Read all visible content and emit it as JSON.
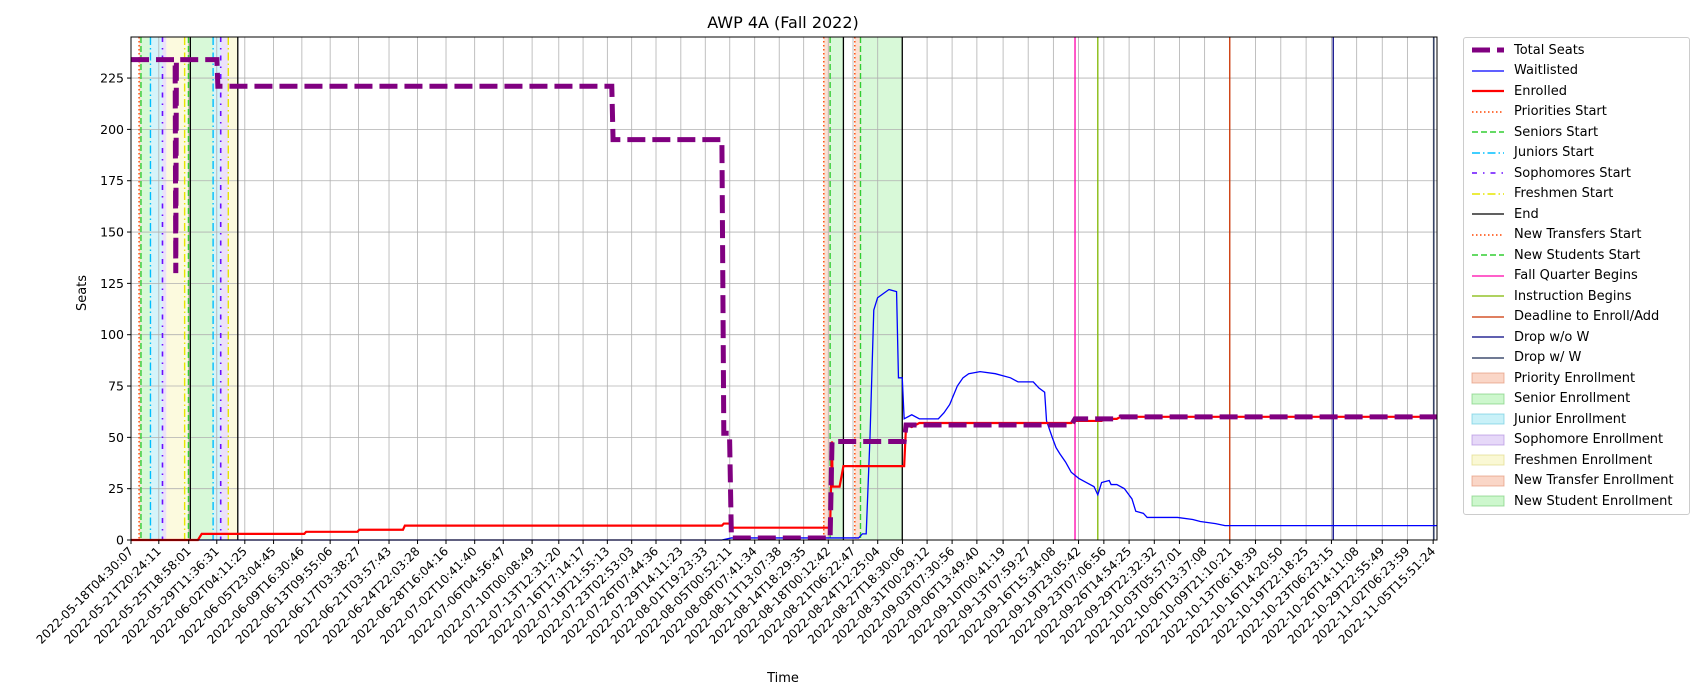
{
  "chart_data": {
    "type": "line",
    "title": "AWP 4A (Fall 2022)",
    "xlabel": "Time",
    "ylabel": "Seats",
    "ylim": [
      0,
      245
    ],
    "xlim": [
      "2022-05-18T04:30:07",
      "2022-11-06T04:00:00"
    ],
    "grid": true,
    "legend_position": "outside-right",
    "yticks": [
      0,
      25,
      50,
      75,
      100,
      125,
      150,
      175,
      200,
      225
    ],
    "xticks": [
      "2022-05-18T04:30:07",
      "2022-05-21T20:24:11",
      "2022-05-25T18:58:01",
      "2022-05-29T11:36:31",
      "2022-06-02T04:11:25",
      "2022-06-05T23:04:45",
      "2022-06-09T16:30:46",
      "2022-06-13T09:55:06",
      "2022-06-17T03:38:27",
      "2022-06-21T03:57:43",
      "2022-06-24T22:03:28",
      "2022-06-28T16:04:16",
      "2022-07-02T10:41:40",
      "2022-07-06T04:56:47",
      "2022-07-10T00:08:49",
      "2022-07-13T12:31:20",
      "2022-07-16T17:14:17",
      "2022-07-19T21:55:13",
      "2022-07-23T02:53:03",
      "2022-07-26T07:44:36",
      "2022-07-29T14:11:23",
      "2022-08-01T19:23:33",
      "2022-08-05T00:52:11",
      "2022-08-08T07:41:34",
      "2022-08-11T13:07:38",
      "2022-08-14T18:29:35",
      "2022-08-18T00:12:42",
      "2022-08-21T06:22:47",
      "2022-08-24T12:25:04",
      "2022-08-27T18:30:06",
      "2022-08-31T00:29:12",
      "2022-09-03T07:30:56",
      "2022-09-06T13:49:40",
      "2022-09-10T00:41:19",
      "2022-09-13T07:59:27",
      "2022-09-16T15:34:08",
      "2022-09-19T23:05:42",
      "2022-09-23T07:06:56",
      "2022-09-26T14:54:25",
      "2022-09-29T22:32:32",
      "2022-10-03T05:57:01",
      "2022-10-06T13:37:08",
      "2022-10-09T21:10:21",
      "2022-10-13T06:18:39",
      "2022-10-16T14:20:50",
      "2022-10-19T22:18:25",
      "2022-10-23T06:23:15",
      "2022-10-26T14:11:08",
      "2022-10-29T22:55:49",
      "2022-11-02T06:23:59",
      "2022-11-05T15:51:24"
    ],
    "series": [
      {
        "name": "Total Seats",
        "color": "#800080",
        "style": "dashed-thick",
        "points": [
          [
            "2022-05-18T04:30:07",
            234
          ],
          [
            "2022-05-23T12:00:00",
            234
          ],
          [
            "2022-05-24T00:00:00",
            234
          ],
          [
            "2022-05-24T02:00:00",
            130
          ],
          [
            "2022-05-24T04:00:00",
            234
          ],
          [
            "2022-05-29T12:00:00",
            234
          ],
          [
            "2022-05-29T15:00:00",
            221
          ],
          [
            "2022-07-20T12:00:00",
            221
          ],
          [
            "2022-07-20T16:00:00",
            195
          ],
          [
            "2022-08-04T00:00:00",
            195
          ],
          [
            "2022-08-04T06:00:00",
            52
          ],
          [
            "2022-08-05T00:00:00",
            52
          ],
          [
            "2022-08-05T06:00:00",
            1
          ],
          [
            "2022-08-18T06:00:00",
            1
          ],
          [
            "2022-08-18T12:00:00",
            48
          ],
          [
            "2022-08-28T00:00:00",
            48
          ],
          [
            "2022-08-28T06:00:00",
            56
          ],
          [
            "2022-09-19T00:00:00",
            56
          ],
          [
            "2022-09-19T12:00:00",
            59
          ],
          [
            "2022-09-25T00:00:00",
            59
          ],
          [
            "2022-09-25T12:00:00",
            60
          ],
          [
            "2022-11-06T04:00:00",
            60
          ]
        ]
      },
      {
        "name": "Waitlisted",
        "color": "#0000ff",
        "style": "solid",
        "points": [
          [
            "2022-05-18T04:30:07",
            0
          ],
          [
            "2022-08-04T00:00:00",
            0
          ],
          [
            "2022-08-05T06:00:00",
            1
          ],
          [
            "2022-08-22T00:00:00",
            1
          ],
          [
            "2022-08-22T12:00:00",
            3
          ],
          [
            "2022-08-23T00:00:00",
            3
          ],
          [
            "2022-08-23T12:00:00",
            50
          ],
          [
            "2022-08-24T00:00:00",
            112
          ],
          [
            "2022-08-24T12:00:00",
            118
          ],
          [
            "2022-08-25T06:00:00",
            120
          ],
          [
            "2022-08-26T00:00:00",
            122
          ],
          [
            "2022-08-27T00:00:00",
            121
          ],
          [
            "2022-08-27T06:00:00",
            79
          ],
          [
            "2022-08-27T18:00:00",
            79
          ],
          [
            "2022-08-28T00:00:00",
            59
          ],
          [
            "2022-08-29T00:00:00",
            61
          ],
          [
            "2022-08-30T00:00:00",
            59
          ],
          [
            "2022-09-01T12:00:00",
            59
          ],
          [
            "2022-09-02T06:00:00",
            62
          ],
          [
            "2022-09-03T00:00:00",
            66
          ],
          [
            "2022-09-04T00:00:00",
            75
          ],
          [
            "2022-09-04T18:00:00",
            79
          ],
          [
            "2022-09-05T12:00:00",
            81
          ],
          [
            "2022-09-07T00:00:00",
            82
          ],
          [
            "2022-09-09T00:00:00",
            81
          ],
          [
            "2022-09-11T00:00:00",
            79
          ],
          [
            "2022-09-12T00:00:00",
            77
          ],
          [
            "2022-09-14T00:00:00",
            77
          ],
          [
            "2022-09-14T18:00:00",
            74
          ],
          [
            "2022-09-15T12:00:00",
            72
          ],
          [
            "2022-09-15T18:00:00",
            58
          ],
          [
            "2022-09-16T12:00:00",
            50
          ],
          [
            "2022-09-17T00:00:00",
            45
          ],
          [
            "2022-09-17T12:00:00",
            42
          ],
          [
            "2022-09-18T06:00:00",
            38
          ],
          [
            "2022-09-19T00:00:00",
            33
          ],
          [
            "2022-09-20T00:00:00",
            30
          ],
          [
            "2022-09-21T00:00:00",
            28
          ],
          [
            "2022-09-22T00:00:00",
            26
          ],
          [
            "2022-09-22T12:00:00",
            22
          ],
          [
            "2022-09-23T00:00:00",
            28
          ],
          [
            "2022-09-24T00:00:00",
            29
          ],
          [
            "2022-09-24T06:00:00",
            27
          ],
          [
            "2022-09-25T00:00:00",
            27
          ],
          [
            "2022-09-26T00:00:00",
            25
          ],
          [
            "2022-09-27T00:00:00",
            20
          ],
          [
            "2022-09-27T12:00:00",
            14
          ],
          [
            "2022-09-28T12:00:00",
            13
          ],
          [
            "2022-09-29T00:00:00",
            11
          ],
          [
            "2022-10-03T00:00:00",
            11
          ],
          [
            "2022-10-05T00:00:00",
            10
          ],
          [
            "2022-10-06T00:00:00",
            9
          ],
          [
            "2022-10-08T00:00:00",
            8
          ],
          [
            "2022-10-09T06:00:00",
            7
          ],
          [
            "2022-11-06T04:00:00",
            7
          ]
        ]
      },
      {
        "name": "Enrolled",
        "color": "#ff0000",
        "style": "solid-thick",
        "points": [
          [
            "2022-05-18T04:30:07",
            0
          ],
          [
            "2022-05-27T00:00:00",
            0
          ],
          [
            "2022-05-27T12:00:00",
            3
          ],
          [
            "2022-06-10T00:00:00",
            3
          ],
          [
            "2022-06-10T06:00:00",
            4
          ],
          [
            "2022-06-17T00:00:00",
            4
          ],
          [
            "2022-06-17T06:00:00",
            5
          ],
          [
            "2022-06-23T00:00:00",
            5
          ],
          [
            "2022-06-23T06:00:00",
            7
          ],
          [
            "2022-08-04T00:00:00",
            7
          ],
          [
            "2022-08-04T06:00:00",
            8
          ],
          [
            "2022-08-05T00:00:00",
            8
          ],
          [
            "2022-08-05T06:00:00",
            6
          ],
          [
            "2022-08-18T06:00:00",
            6
          ],
          [
            "2022-08-18T12:00:00",
            48
          ],
          [
            "2022-08-18T14:00:00",
            26
          ],
          [
            "2022-08-19T12:00:00",
            26
          ],
          [
            "2022-08-20T00:00:00",
            36
          ],
          [
            "2022-08-28T00:00:00",
            36
          ],
          [
            "2022-08-28T06:00:00",
            56
          ],
          [
            "2022-08-29T00:00:00",
            55
          ],
          [
            "2022-08-30T00:00:00",
            57
          ],
          [
            "2022-09-19T00:00:00",
            57
          ],
          [
            "2022-09-19T12:00:00",
            58
          ],
          [
            "2022-09-23T00:00:00",
            58
          ],
          [
            "2022-09-23T12:00:00",
            59
          ],
          [
            "2022-09-25T00:00:00",
            59
          ],
          [
            "2022-09-25T12:00:00",
            60
          ],
          [
            "2022-11-06T04:00:00",
            60
          ]
        ]
      }
    ],
    "event_lines": [
      {
        "name": "Priorities Start",
        "color": "#ff4500",
        "style": "dotted",
        "x": [
          "2022-05-19T06:00:00",
          "2022-08-17T10:00:00"
        ]
      },
      {
        "name": "Seniors Start",
        "color": "#32cd32",
        "style": "dashed",
        "x": [
          "2022-05-19T12:00:00",
          "2022-05-25T18:00:00"
        ]
      },
      {
        "name": "Juniors Start",
        "color": "#00bfff",
        "style": "dashdot",
        "x": [
          "2022-05-20T18:00:00",
          "2022-05-29T00:00:00"
        ]
      },
      {
        "name": "Sophomores Start",
        "color": "#6a0dff",
        "style": "dashdot-dense",
        "x": [
          "2022-05-22T08:00:00",
          "2022-05-30T00:00:00"
        ]
      },
      {
        "name": "Freshmen Start",
        "color": "#e6e600",
        "style": "dashdot",
        "x": [
          "2022-05-25T06:00:00",
          "2022-05-31T00:00:00"
        ]
      },
      {
        "name": "End",
        "color": "#000000",
        "style": "solid",
        "x": [
          "2022-05-26T00:00:00",
          "2022-06-01T06:00:00",
          "2022-08-20T00:00:00",
          "2022-08-27T18:00:00"
        ]
      },
      {
        "name": "New Transfers Start",
        "color": "#ff4500",
        "style": "dotted",
        "x": [
          "2022-08-21T12:00:00"
        ]
      },
      {
        "name": "New Students Start",
        "color": "#32cd32",
        "style": "dashed",
        "x": [
          "2022-08-18T06:00:00",
          "2022-08-22T06:00:00"
        ]
      },
      {
        "name": "Fall Quarter Begins",
        "color": "#ff00aa",
        "style": "solid",
        "x": [
          "2022-09-19T12:00:00"
        ]
      },
      {
        "name": "Instruction Begins",
        "color": "#7fb800",
        "style": "solid",
        "x": [
          "2022-09-22T12:00:00"
        ]
      },
      {
        "name": "Deadline to Enroll/Add",
        "color": "#cc3300",
        "style": "solid",
        "x": [
          "2022-10-09T21:00:00"
        ]
      },
      {
        "name": "Drop w/o W",
        "color": "#000080",
        "style": "solid",
        "x": [
          "2022-10-23T12:00:00"
        ]
      },
      {
        "name": "Drop w/ W",
        "color": "#1a2a55",
        "style": "solid",
        "x": [
          "2022-11-05T18:00:00"
        ]
      }
    ],
    "spans": [
      {
        "name": "Priority Enrollment",
        "color": "#f4a582",
        "ranges": [
          [
            "2022-05-19T06:00:00",
            "2022-05-19T12:00:00"
          ]
        ]
      },
      {
        "name": "Senior Enrollment",
        "color": "#90ee90",
        "ranges": [
          [
            "2022-05-19T12:00:00",
            "2022-05-20T18:00:00"
          ],
          [
            "2022-05-25T18:00:00",
            "2022-05-29T00:00:00"
          ]
        ]
      },
      {
        "name": "Junior Enrollment",
        "color": "#87e0f0",
        "ranges": [
          [
            "2022-05-20T18:00:00",
            "2022-05-22T08:00:00"
          ],
          [
            "2022-05-29T00:00:00",
            "2022-05-30T00:00:00"
          ]
        ]
      },
      {
        "name": "Sophomore Enrollment",
        "color": "#c8a8f0",
        "ranges": [
          [
            "2022-05-22T08:00:00",
            "2022-05-22T20:00:00"
          ],
          [
            "2022-05-30T00:00:00",
            "2022-05-31T00:00:00"
          ]
        ]
      },
      {
        "name": "Freshmen Enrollment",
        "color": "#f5f0a0",
        "ranges": [
          [
            "2022-05-22T20:00:00",
            "2022-05-26T00:00:00"
          ],
          [
            "2022-05-31T00:00:00",
            "2022-06-01T06:00:00"
          ]
        ]
      },
      {
        "name": "New Transfer Enrollment",
        "color": "#f4a582",
        "ranges": [
          [
            "2022-08-17T10:00:00",
            "2022-08-18T06:00:00"
          ],
          [
            "2022-08-21T12:00:00",
            "2022-08-22T06:00:00"
          ]
        ]
      },
      {
        "name": "New Student Enrollment",
        "color": "#90ee90",
        "ranges": [
          [
            "2022-08-18T06:00:00",
            "2022-08-20T00:00:00"
          ],
          [
            "2022-08-22T06:00:00",
            "2022-08-27T18:00:00"
          ]
        ]
      }
    ]
  },
  "legend": [
    {
      "label": "Total Seats",
      "kind": "line",
      "color": "#800080",
      "style": "dashed-thick"
    },
    {
      "label": "Waitlisted",
      "kind": "line",
      "color": "#0000ff",
      "style": "solid"
    },
    {
      "label": "Enrolled",
      "kind": "line",
      "color": "#ff0000",
      "style": "solid-thick"
    },
    {
      "label": "Priorities Start",
      "kind": "line",
      "color": "#ff4500",
      "style": "dotted"
    },
    {
      "label": "Seniors Start",
      "kind": "line",
      "color": "#32cd32",
      "style": "dashed"
    },
    {
      "label": "Juniors Start",
      "kind": "line",
      "color": "#00bfff",
      "style": "dashdot"
    },
    {
      "label": "Sophomores Start",
      "kind": "line",
      "color": "#6a0dff",
      "style": "dashdot-dense"
    },
    {
      "label": "Freshmen Start",
      "kind": "line",
      "color": "#e6e600",
      "style": "dashdot"
    },
    {
      "label": "End",
      "kind": "line",
      "color": "#000000",
      "style": "solid"
    },
    {
      "label": "New Transfers Start",
      "kind": "line",
      "color": "#ff4500",
      "style": "dotted"
    },
    {
      "label": "New Students Start",
      "kind": "line",
      "color": "#32cd32",
      "style": "dashed"
    },
    {
      "label": "Fall Quarter Begins",
      "kind": "line",
      "color": "#ff00aa",
      "style": "solid"
    },
    {
      "label": "Instruction Begins",
      "kind": "line",
      "color": "#7fb800",
      "style": "solid"
    },
    {
      "label": "Deadline to Enroll/Add",
      "kind": "line",
      "color": "#cc3300",
      "style": "solid"
    },
    {
      "label": "Drop w/o W",
      "kind": "line",
      "color": "#000080",
      "style": "solid"
    },
    {
      "label": "Drop w/ W",
      "kind": "line",
      "color": "#1a2a55",
      "style": "solid"
    },
    {
      "label": "Priority Enrollment",
      "kind": "patch",
      "color": "#f4a582",
      "edge": "#e08a6a"
    },
    {
      "label": "Senior Enrollment",
      "kind": "patch",
      "color": "#90ee90",
      "edge": "#6cc86c"
    },
    {
      "label": "Junior Enrollment",
      "kind": "patch",
      "color": "#87e0f0",
      "edge": "#5fc6dc"
    },
    {
      "label": "Sophomore Enrollment",
      "kind": "patch",
      "color": "#c8a8f0",
      "edge": "#a884dc"
    },
    {
      "label": "Freshmen Enrollment",
      "kind": "patch",
      "color": "#f5f0a0",
      "edge": "#dcd67a"
    },
    {
      "label": "New Transfer Enrollment",
      "kind": "patch",
      "color": "#f4a582",
      "edge": "#e08a6a"
    },
    {
      "label": "New Student Enrollment",
      "kind": "patch",
      "color": "#90ee90",
      "edge": "#6cc86c"
    }
  ]
}
